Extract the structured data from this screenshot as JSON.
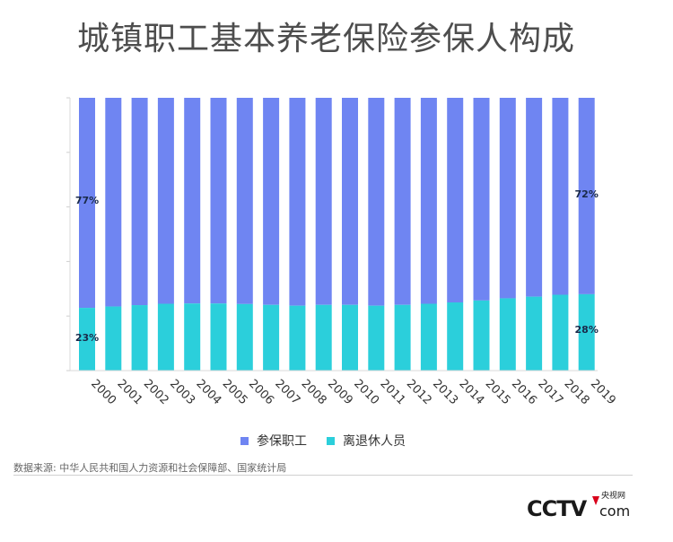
{
  "title": "城镇职工基本养老保险参保人构成",
  "source": "数据来源: 中华人民共和国人力资源和社会保障部、国家统计局",
  "logo": {
    "top": "央视网",
    "bottom": "com"
  },
  "colors": {
    "employees": "#6f85f2",
    "retirees": "#2bcfdb"
  },
  "chart_data": {
    "type": "bar",
    "stacked": true,
    "categories": [
      "2000",
      "2001",
      "2002",
      "2003",
      "2004",
      "2005",
      "2006",
      "2007",
      "2008",
      "2009",
      "2010",
      "2011",
      "2012",
      "2013",
      "2014",
      "2015",
      "2016",
      "2017",
      "2018",
      "2019"
    ],
    "series": [
      {
        "name": "离退休人员",
        "values": [
          23,
          23.5,
          24,
          24.5,
          24.6,
          24.6,
          24.4,
          24.1,
          23.8,
          24.1,
          24.1,
          23.8,
          24.1,
          24.5,
          25,
          25.7,
          26.5,
          27.1,
          27.8,
          28
        ]
      },
      {
        "name": "参保职工",
        "values": [
          77,
          76.5,
          76,
          75.5,
          75.4,
          75.4,
          75.6,
          75.9,
          76.2,
          75.9,
          75.9,
          76.2,
          75.9,
          75.5,
          75,
          74.3,
          73.5,
          72.9,
          72.2,
          72
        ]
      }
    ],
    "data_labels": [
      {
        "category": "2000",
        "series": "参保职工",
        "text": "77%"
      },
      {
        "category": "2000",
        "series": "离退休人员",
        "text": "23%"
      },
      {
        "category": "2019",
        "series": "参保职工",
        "text": "72%"
      },
      {
        "category": "2019",
        "series": "离退休人员",
        "text": "28%"
      }
    ],
    "ylim": [
      0,
      100
    ],
    "legend_position": "bottom",
    "grid": false
  }
}
